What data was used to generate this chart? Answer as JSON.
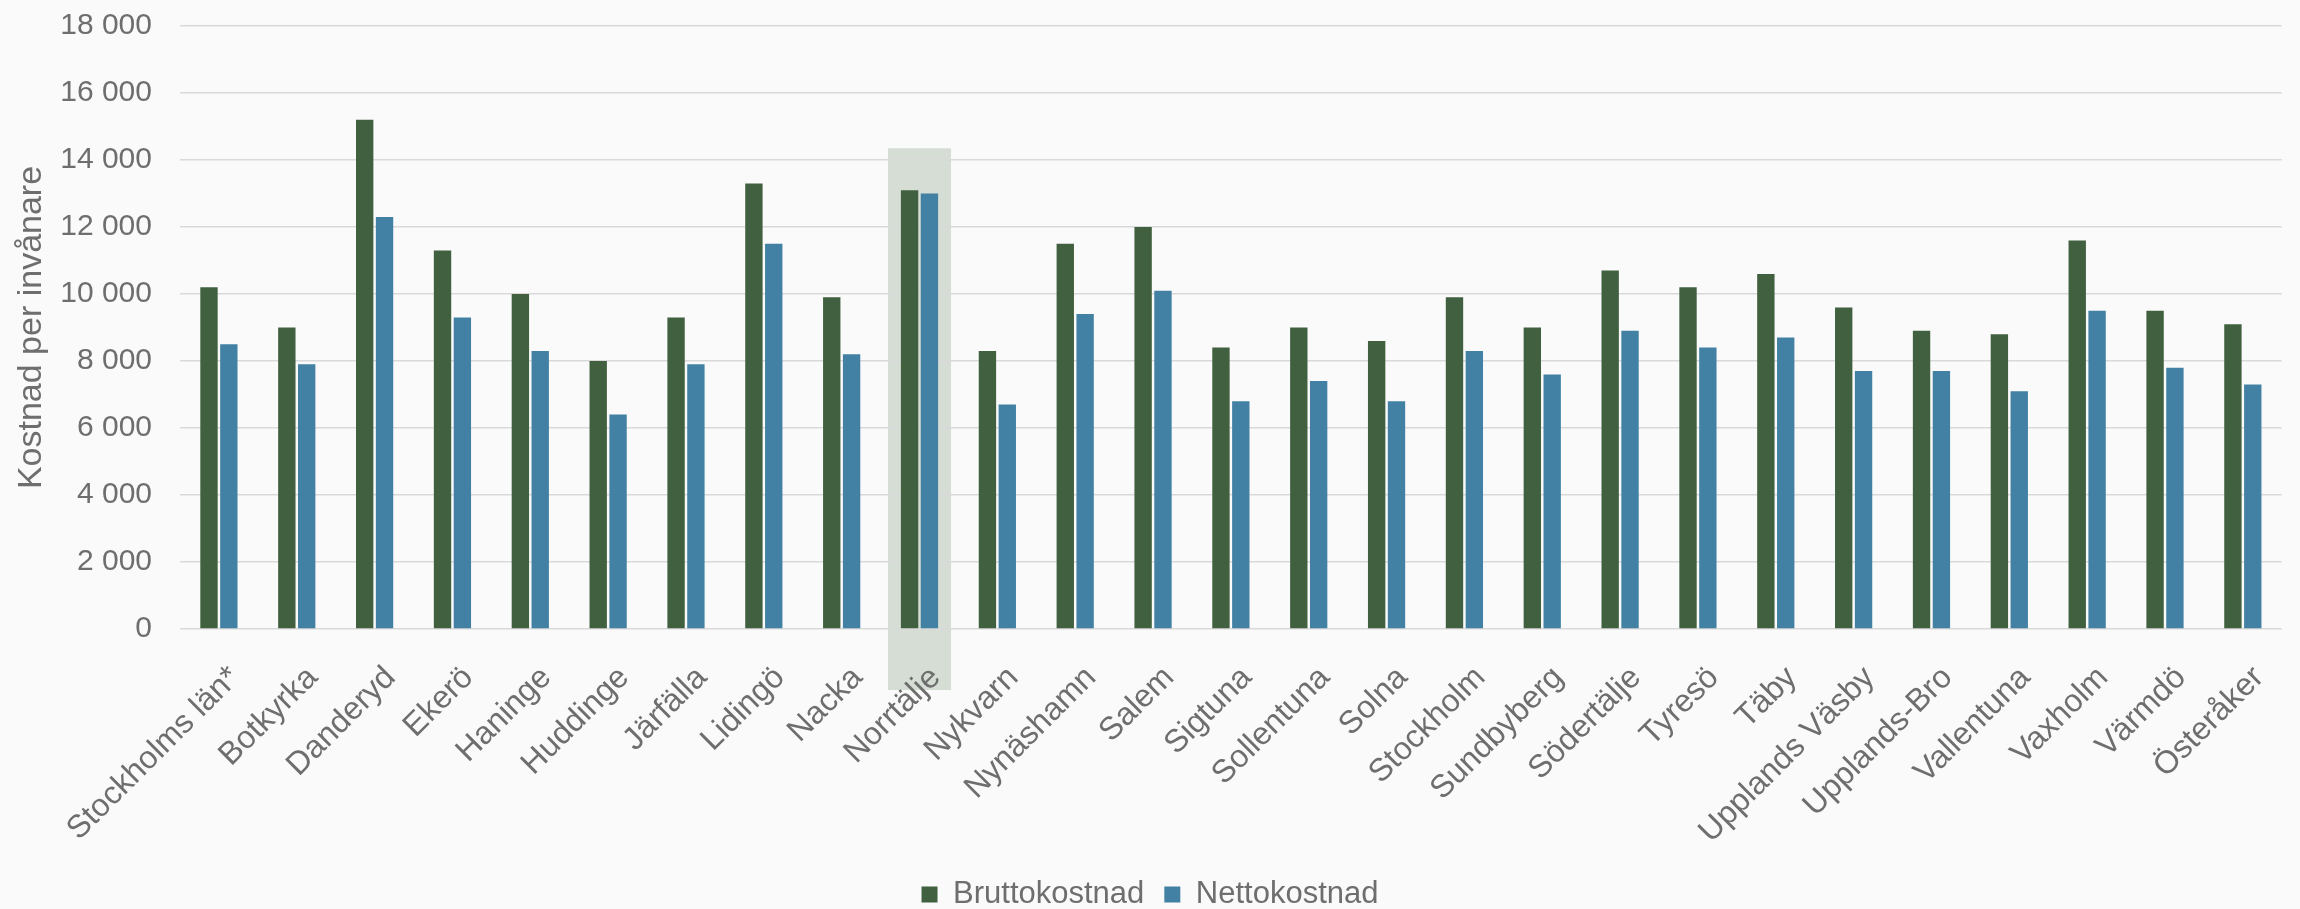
{
  "chart_data": {
    "type": "bar",
    "ylabel": "Kostnad per invånare",
    "categories": [
      "Stockholms län*",
      "Botkyrka",
      "Danderyd",
      "Ekerö",
      "Haninge",
      "Huddinge",
      "Järfälla",
      "Lidingö",
      "Nacka",
      "Norrtälje",
      "Nykvarn",
      "Nynäshamn",
      "Salem",
      "Sigtuna",
      "Sollentuna",
      "Solna",
      "Stockholm",
      "Sundbyberg",
      "Södertälje",
      "Tyresö",
      "Täby",
      "Upplands Väsby",
      "Upplands-Bro",
      "Vallentuna",
      "Vaxholm",
      "Värmdö",
      "Österåker"
    ],
    "series": [
      {
        "name": "Bruttokostnad",
        "color": "#41603f",
        "values": [
          10200,
          9000,
          15200,
          11300,
          10000,
          8000,
          9300,
          13300,
          9900,
          13100,
          8300,
          11500,
          12000,
          8400,
          9000,
          8600,
          9900,
          9000,
          10700,
          10200,
          10600,
          9600,
          8900,
          8800,
          11600,
          9500,
          9100
        ]
      },
      {
        "name": "Nettokostnad",
        "color": "#4281a4",
        "values": [
          8500,
          7900,
          12300,
          9300,
          8300,
          6400,
          7900,
          11500,
          8200,
          13000,
          6700,
          9400,
          10100,
          6800,
          7400,
          6800,
          8300,
          7600,
          8900,
          8400,
          8700,
          7700,
          7700,
          7100,
          9500,
          7800,
          7300
        ]
      }
    ],
    "ylim": [
      0,
      18000
    ],
    "yticks": [
      0,
      {
        "value": 2000,
        "label": "2 000"
      },
      {
        "value": 4000,
        "label": "4 000"
      },
      {
        "value": 6000,
        "label": "6 000"
      },
      {
        "value": 8000,
        "label": "8 000"
      },
      {
        "value": 10000,
        "label": "10 000"
      },
      {
        "value": 12000,
        "label": "12 000"
      },
      {
        "value": 14000,
        "label": "14 000"
      },
      {
        "value": 16000,
        "label": "16 000"
      },
      {
        "value": 18000,
        "label": "18 000"
      }
    ],
    "bands": [
      {
        "axis": "x",
        "from": "Norrtälje",
        "to": "Norrtälje",
        "color": "#d5ddd5"
      }
    ],
    "grid": "y",
    "legend": "bottom"
  }
}
